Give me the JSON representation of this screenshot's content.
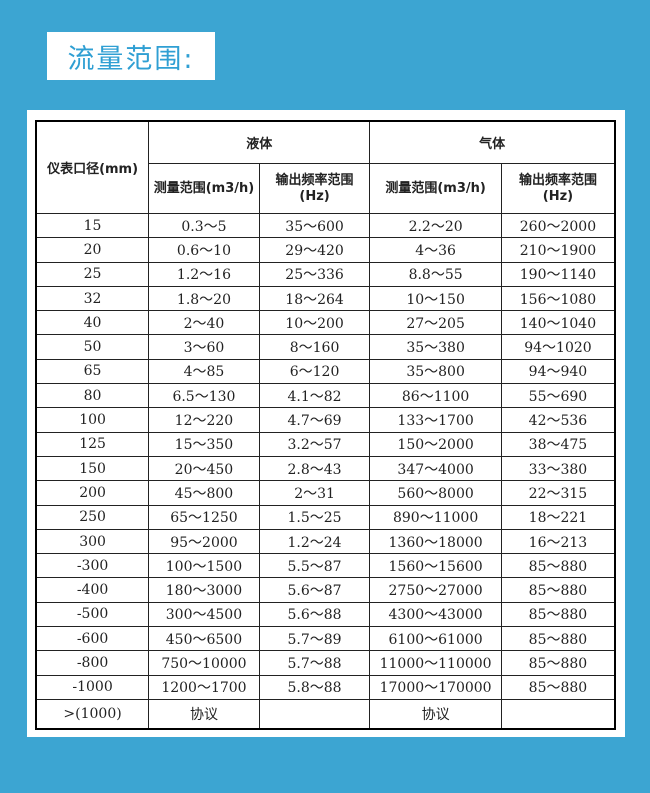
{
  "title": "流量范围:",
  "colors": {
    "background": "#3ca5d2",
    "title_text": "#2f9fd3"
  },
  "table": {
    "header": {
      "diameter": "仪表口径(mm)",
      "liquid": "液体",
      "gas": "气体",
      "measure_range": "测量范围(m3/h)",
      "output_freq_line1": "输出频率范围",
      "output_freq_line2": "(Hz)"
    },
    "rows": [
      [
        "15",
        "0.3～5",
        "35～600",
        "2.2～20",
        "260～2000"
      ],
      [
        "20",
        "0.6～10",
        "29～420",
        "4～36",
        "210～1900"
      ],
      [
        "25",
        "1.2～16",
        "25～336",
        "8.8～55",
        "190～1140"
      ],
      [
        "32",
        "1.8～20",
        "18～264",
        "10～150",
        "156～1080"
      ],
      [
        "40",
        "2～40",
        "10～200",
        "27～205",
        "140～1040"
      ],
      [
        "50",
        "3～60",
        "8～160",
        "35～380",
        "94～1020"
      ],
      [
        "65",
        "4～85",
        "6～120",
        "35～800",
        "94～940"
      ],
      [
        "80",
        "6.5～130",
        "4.1～82",
        "86～1100",
        "55～690"
      ],
      [
        "100",
        "12～220",
        "4.7～69",
        "133～1700",
        "42～536"
      ],
      [
        "125",
        "15～350",
        "3.2～57",
        "150～2000",
        "38～475"
      ],
      [
        "150",
        "20～450",
        "2.8～43",
        "347～4000",
        "33～380"
      ],
      [
        "200",
        "45～800",
        "2～31",
        "560～8000",
        "22～315"
      ],
      [
        "250",
        "65～1250",
        "1.5～25",
        "890～11000",
        "18～221"
      ],
      [
        "300",
        "95～2000",
        "1.2～24",
        "1360～18000",
        "16～213"
      ],
      [
        "-300",
        "100～1500",
        "5.5～87",
        "1560～15600",
        "85～880"
      ],
      [
        "-400",
        "180～3000",
        "5.6～87",
        "2750～27000",
        "85～880"
      ],
      [
        "-500",
        "300～4500",
        "5.6～88",
        "4300～43000",
        "85～880"
      ],
      [
        "-600",
        "450～6500",
        "5.7～89",
        "6100～61000",
        "85～880"
      ],
      [
        "-800",
        "750～10000",
        "5.7～88",
        "11000～110000",
        "85～880"
      ],
      [
        "-1000",
        "1200～1700",
        "5.8～88",
        "17000～170000",
        "85～880"
      ]
    ],
    "last_row": [
      ">(1000)",
      "协议",
      "",
      "协议",
      ""
    ]
  }
}
